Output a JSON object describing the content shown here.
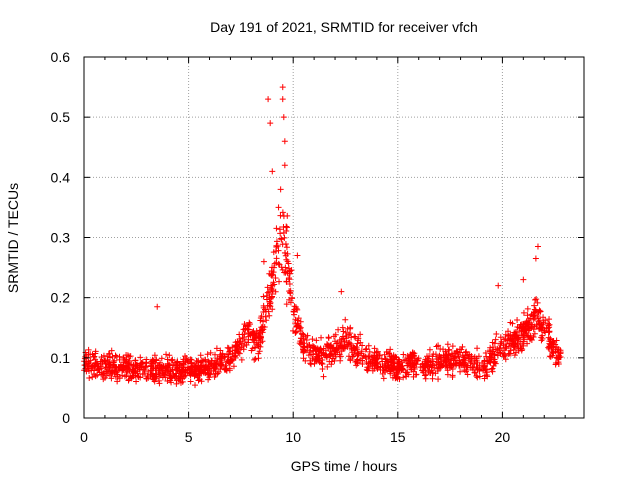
{
  "chart_data": {
    "type": "scatter",
    "title": "Day 191 of 2021, SRMTID for receiver vfch",
    "xlabel": "GPS time / hours",
    "ylabel": "SRMTID / TECUs",
    "xlim": [
      0,
      23.9
    ],
    "ylim": [
      0,
      0.6
    ],
    "xticks": [
      "0",
      "5",
      "10",
      "15",
      "20"
    ],
    "yticks": [
      "0",
      "0.1",
      "0.2",
      "0.3",
      "0.4",
      "0.5",
      "0.6"
    ],
    "grid": true,
    "marker": "+",
    "color": "#ff0000",
    "series": [
      {
        "name": "SRMTID",
        "profile": [
          {
            "x": 0.0,
            "y": 0.09,
            "spread": 0.03
          },
          {
            "x": 1.0,
            "y": 0.085,
            "spread": 0.03
          },
          {
            "x": 2.0,
            "y": 0.085,
            "spread": 0.03
          },
          {
            "x": 3.0,
            "y": 0.08,
            "spread": 0.03
          },
          {
            "x": 4.0,
            "y": 0.08,
            "spread": 0.03
          },
          {
            "x": 5.0,
            "y": 0.08,
            "spread": 0.03
          },
          {
            "x": 6.0,
            "y": 0.085,
            "spread": 0.03
          },
          {
            "x": 7.0,
            "y": 0.1,
            "spread": 0.035
          },
          {
            "x": 7.8,
            "y": 0.14,
            "spread": 0.04
          },
          {
            "x": 8.3,
            "y": 0.12,
            "spread": 0.035
          },
          {
            "x": 8.8,
            "y": 0.2,
            "spread": 0.06
          },
          {
            "x": 9.3,
            "y": 0.28,
            "spread": 0.09
          },
          {
            "x": 9.6,
            "y": 0.3,
            "spread": 0.12
          },
          {
            "x": 10.0,
            "y": 0.18,
            "spread": 0.05
          },
          {
            "x": 10.5,
            "y": 0.12,
            "spread": 0.04
          },
          {
            "x": 11.5,
            "y": 0.1,
            "spread": 0.035
          },
          {
            "x": 12.5,
            "y": 0.13,
            "spread": 0.04
          },
          {
            "x": 13.5,
            "y": 0.1,
            "spread": 0.035
          },
          {
            "x": 15.0,
            "y": 0.085,
            "spread": 0.03
          },
          {
            "x": 16.5,
            "y": 0.09,
            "spread": 0.03
          },
          {
            "x": 18.0,
            "y": 0.1,
            "spread": 0.035
          },
          {
            "x": 19.0,
            "y": 0.08,
            "spread": 0.035
          },
          {
            "x": 20.0,
            "y": 0.12,
            "spread": 0.04
          },
          {
            "x": 21.0,
            "y": 0.14,
            "spread": 0.045
          },
          {
            "x": 21.7,
            "y": 0.17,
            "spread": 0.05
          },
          {
            "x": 22.5,
            "y": 0.11,
            "spread": 0.035
          },
          {
            "x": 22.8,
            "y": 0.1,
            "spread": 0.03
          }
        ],
        "peaks": [
          {
            "x": 8.8,
            "y": 0.53
          },
          {
            "x": 8.9,
            "y": 0.49
          },
          {
            "x": 9.0,
            "y": 0.41
          },
          {
            "x": 9.5,
            "y": 0.55
          },
          {
            "x": 9.5,
            "y": 0.53
          },
          {
            "x": 9.55,
            "y": 0.5
          },
          {
            "x": 9.6,
            "y": 0.46
          },
          {
            "x": 9.6,
            "y": 0.42
          },
          {
            "x": 9.4,
            "y": 0.38
          },
          {
            "x": 9.3,
            "y": 0.35
          },
          {
            "x": 8.6,
            "y": 0.26
          },
          {
            "x": 10.2,
            "y": 0.27
          },
          {
            "x": 12.3,
            "y": 0.21
          },
          {
            "x": 3.5,
            "y": 0.185
          },
          {
            "x": 19.8,
            "y": 0.22
          },
          {
            "x": 21.7,
            "y": 0.285
          },
          {
            "x": 21.6,
            "y": 0.265
          },
          {
            "x": 21.0,
            "y": 0.23
          }
        ]
      }
    ]
  }
}
